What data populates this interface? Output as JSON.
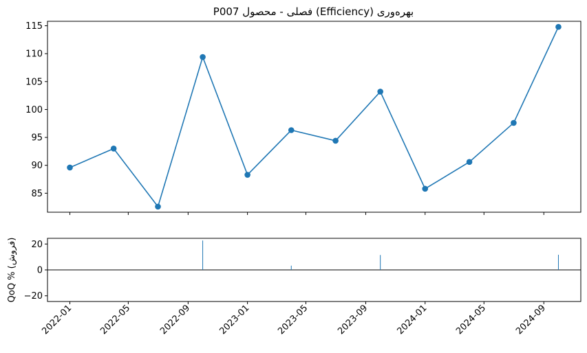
{
  "chart_data": [
    {
      "type": "line",
      "title": "بهره‌وری (Efficiency) فصلی - محصول P007",
      "xlabel": "",
      "ylabel": "",
      "ylim": [
        81.6,
        115.8
      ],
      "yticks": [
        85,
        90,
        95,
        100,
        105,
        110,
        115
      ],
      "xlim": [
        "2021-11-16",
        "2024-11-16"
      ],
      "xticks": [
        "2022-01",
        "2022-05",
        "2022-09",
        "2023-01",
        "2023-05",
        "2023-09",
        "2024-01",
        "2024-05",
        "2024-09"
      ],
      "grid": false,
      "color": "#1f77b4",
      "series": [
        {
          "x": [
            "2022-01-01",
            "2022-04-01",
            "2022-07-01",
            "2022-10-01",
            "2023-01-01",
            "2023-04-01",
            "2023-07-01",
            "2023-10-01",
            "2024-01-01",
            "2024-04-01",
            "2024-07-01",
            "2024-10-01"
          ],
          "values": [
            89.6,
            93.0,
            82.6,
            109.4,
            88.3,
            96.3,
            94.4,
            103.2,
            85.8,
            90.6,
            97.6,
            114.8
          ]
        }
      ]
    },
    {
      "type": "bar",
      "title": "",
      "xlabel": "",
      "ylabel": "QoQ % (فروش)",
      "ylim": [
        -24.4,
        24.4
      ],
      "yticks": [
        -20,
        0,
        20
      ],
      "xlim": [
        "2021-11-16",
        "2024-11-16"
      ],
      "xticks": [
        "2022-01",
        "2022-05",
        "2022-09",
        "2023-01",
        "2023-05",
        "2023-09",
        "2024-01",
        "2024-05",
        "2024-09"
      ],
      "zero_line": true,
      "color": "#1f77b4",
      "series": [
        {
          "x": [
            "2022-10-01",
            "2023-04-01",
            "2023-10-01",
            "2024-10-01"
          ],
          "values": [
            22.7,
            3.3,
            11.5,
            11.7
          ]
        }
      ]
    }
  ]
}
